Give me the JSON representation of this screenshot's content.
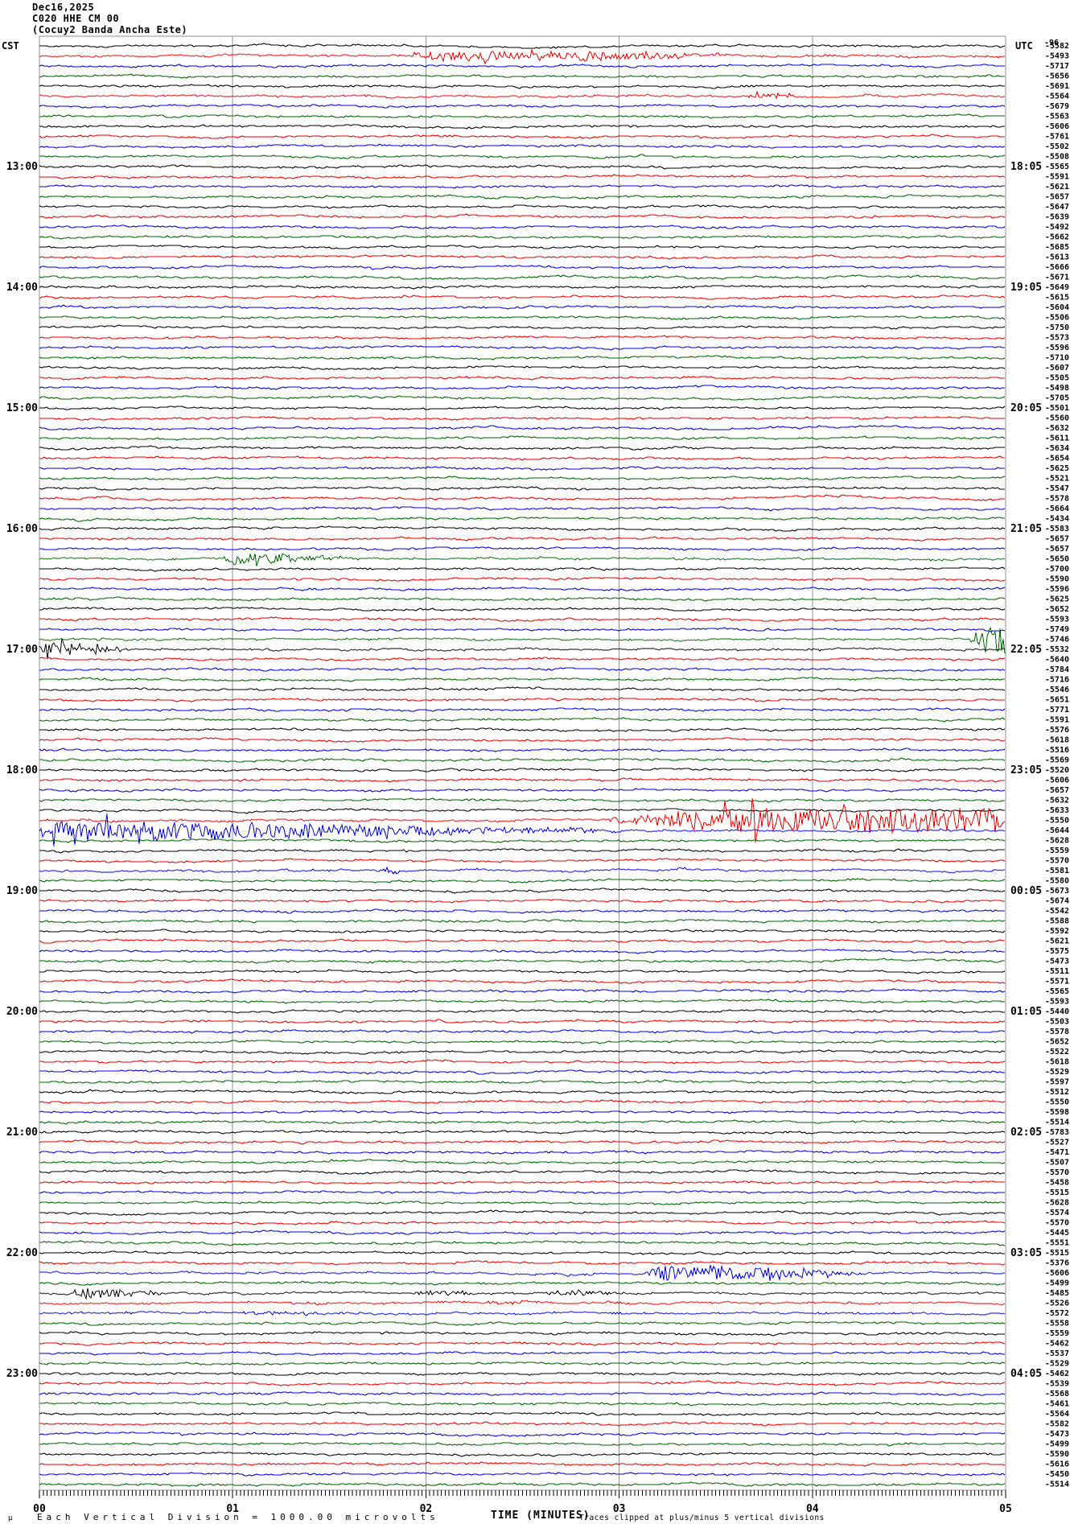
{
  "header": {
    "date": "Dec16,2025",
    "station_code": "C020 HHE CM 00",
    "station_name": "(Cocuy2 Banda Ancha Este)",
    "left_timezone": "CST",
    "right_timezone": "UTC"
  },
  "footer": {
    "scale_note": "Each Vertical Division = 1000.00 microvolts",
    "axis_title": "TIME (MINUTES)",
    "clip_note": "Traces clipped at plus/minus 5 vertical divisions",
    "stray_symbol": "µ"
  },
  "colors": {
    "background": "#ffffff",
    "grid": "#909090",
    "black_trace": "#000000",
    "red_trace": "#ee0000",
    "blue_trace": "#0000dd",
    "green_trace": "#006600"
  },
  "chart_data": {
    "type": "line",
    "title": "C020 HHE CM 00 (Cocuy2 Banda Ancha Este) Dec16,2025 helicorder",
    "xlabel": "TIME (MINUTES)",
    "x_range": [
      0,
      5
    ],
    "x_ticks": [
      "00",
      "01",
      "02",
      "03",
      "04",
      "05"
    ],
    "rows": 144,
    "row_duration_min": 5,
    "trace_color_cycle": [
      "#000000",
      "#ee0000",
      "#0000dd",
      "#006600"
    ],
    "first_hour_label_row": 13,
    "hour_label_row_interval": 12,
    "left_time_labels": [
      "13:00",
      "14:00",
      "15:00",
      "16:00",
      "17:00",
      "18:00",
      "19:00",
      "20:00",
      "21:00",
      "22:00",
      "23:00"
    ],
    "right_time_labels": [
      "18:05",
      "19:05",
      "20:05",
      "21:05",
      "22:05",
      "23:05",
      "00:05",
      "01:05",
      "02:05",
      "03:05",
      "04:05"
    ],
    "first_row_extra_value": "-96",
    "trace_offsets_microvolts": [
      "-5582",
      "-5493",
      "-5717",
      "-5656",
      "-5691",
      "-5564",
      "-5679",
      "-5563",
      "-5606",
      "-5761",
      "-5502",
      "-5508",
      "-5565",
      "-5591",
      "-5621",
      "-5657",
      "-5647",
      "-5639",
      "-5492",
      "-5662",
      "-5685",
      "-5613",
      "-5666",
      "-5671",
      "-5649",
      "-5615",
      "-5604",
      "-5506",
      "-5750",
      "-5573",
      "-5596",
      "-5710",
      "-5607",
      "-5505",
      "-5498",
      "-5705",
      "-5501",
      "-5560",
      "-5632",
      "-5611",
      "-5634",
      "-5654",
      "-5625",
      "-5521",
      "-5547",
      "-5578",
      "-5664",
      "-5434",
      "-5583",
      "-5657",
      "-5657",
      "-5650",
      "-5700",
      "-5590",
      "-5596",
      "-5625",
      "-5652",
      "-5593",
      "-5749",
      "-5746",
      "-5532",
      "-5640",
      "-5784",
      "-5716",
      "-5546",
      "-5651",
      "-5771",
      "-5591",
      "-5576",
      "-5618",
      "-5516",
      "-5569",
      "-5520",
      "-5606",
      "-5657",
      "-5632",
      "-5633",
      "-5550",
      "-5644",
      "-5628",
      "-5559",
      "-5570",
      "-5581",
      "-5580",
      "-5673",
      "-5674",
      "-5542",
      "-5588",
      "-5592",
      "-5621",
      "-5575",
      "-5473",
      "-5511",
      "-5571",
      "-5565",
      "-5593",
      "-5440",
      "-5503",
      "-5578",
      "-5652",
      "-5522",
      "-5618",
      "-5529",
      "-5597",
      "-5512",
      "-5550",
      "-5598",
      "-5514",
      "-5783",
      "-5527",
      "-5471",
      "-5507",
      "-5570",
      "-5458",
      "-5515",
      "-5628",
      "-5574",
      "-5570",
      "-5445",
      "-5551",
      "-5515",
      "-5376",
      "-5606",
      "-5499",
      "-5485",
      "-5526",
      "-5572",
      "-5558",
      "-5559",
      "-5462",
      "-5537",
      "-5529",
      "-5462",
      "-5539",
      "-5568",
      "-5461",
      "-5564",
      "-5582",
      "-5473",
      "-5499",
      "-5590",
      "-5616",
      "-5450",
      "-5514"
    ],
    "events": [
      {
        "row": 2,
        "color": "red",
        "t": [
          1.86,
          2.0,
          2.71,
          3.75
        ],
        "amp_div": 0.48,
        "description": "small event"
      },
      {
        "row": 6,
        "color": "red",
        "t": [
          3.66,
          3.71,
          3.86,
          3.95
        ],
        "amp_div": 0.24,
        "description": "minor burst"
      },
      {
        "row": 52,
        "color": "green",
        "t": [
          0.91,
          1.05,
          1.21,
          1.69
        ],
        "amp_div": 0.48,
        "description": "small event"
      },
      {
        "row": 60,
        "color": "green",
        "t": [
          4.81,
          4.87,
          5.0,
          5.0
        ],
        "amp_div": 1.44,
        "description": "strong burst at end of line, continues on next line"
      },
      {
        "row": 61,
        "color": "black",
        "t": [
          0.0,
          0.0,
          0.11,
          0.5
        ],
        "amp_div": 0.64,
        "description": "continuation of previous line event"
      },
      {
        "row": 78,
        "color": "red",
        "t": [
          2.94,
          3.54,
          5.0,
          5.0
        ],
        "amp_div": 1.2,
        "description": "large clipped event, continues on next line"
      },
      {
        "row": 79,
        "color": "blue",
        "t": [
          0.0,
          0.0,
          0.88,
          3.21
        ],
        "amp_div": 0.88,
        "description": "continuation, slowly decaying coda"
      },
      {
        "row": 83,
        "color": "blue",
        "t": [
          1.74,
          1.77,
          1.86,
          1.91
        ],
        "amp_div": 0.2,
        "description": "tiny blip"
      },
      {
        "row": 123,
        "color": "blue",
        "t": [
          3.13,
          3.21,
          3.48,
          4.4
        ],
        "amp_div": 0.72,
        "description": "moderate event"
      },
      {
        "row": 125,
        "color": "black",
        "t": [
          0.16,
          0.2,
          0.38,
          0.65
        ],
        "amp_div": 0.56,
        "description": "small spiky event"
      },
      {
        "row": 125,
        "color": "black",
        "t": [
          1.94,
          1.98,
          2.19,
          2.27
        ],
        "amp_div": 0.2,
        "description": "minor burst"
      },
      {
        "row": 125,
        "color": "black",
        "t": [
          2.62,
          2.67,
          2.88,
          3.11
        ],
        "amp_div": 0.24,
        "description": "minor burst"
      },
      {
        "row": 126,
        "color": "red",
        "t": [
          2.27,
          2.34,
          2.59,
          2.69
        ],
        "amp_div": 0.12,
        "description": "tiny ripple"
      },
      {
        "row": 127,
        "color": "blue",
        "t": [
          0.95,
          1.05,
          1.38,
          1.48
        ],
        "amp_div": 0.14,
        "description": "tiny ripple"
      }
    ],
    "note": "Each trace line is 5 minutes; color cycle black-red-blue-green; left labels CST, right labels UTC; right column = per-trace mean offset in microvolts"
  }
}
